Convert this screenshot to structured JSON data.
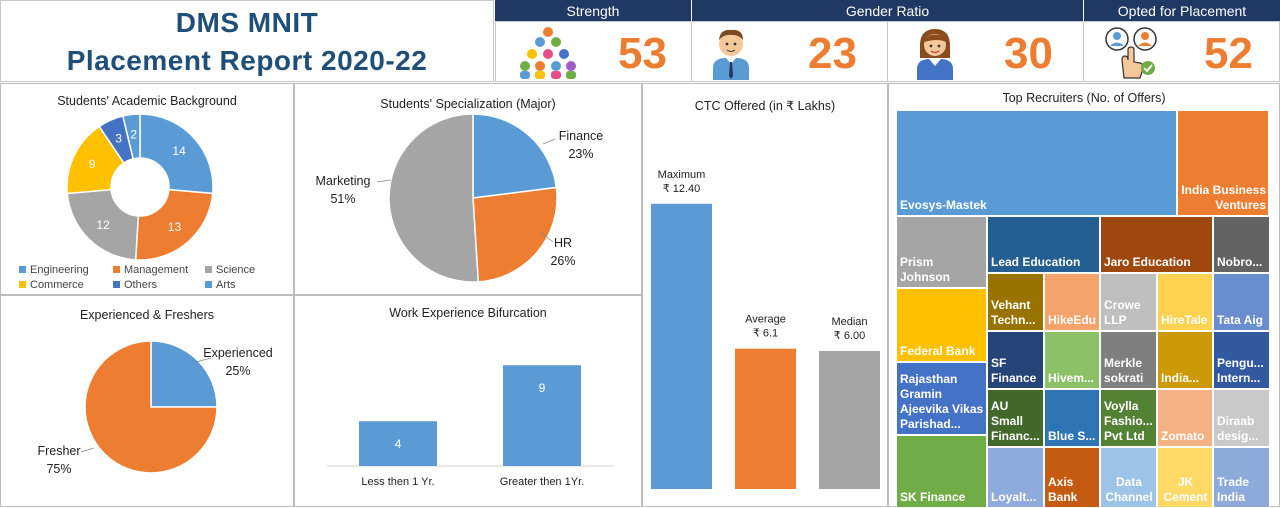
{
  "header": {
    "title_line1": "DMS MNIT",
    "title_line2": "Placement Report 2020-22"
  },
  "kpis": {
    "strength_label": "Strength",
    "strength_value": "53",
    "gender_label": "Gender Ratio",
    "male_value": "23",
    "female_value": "30",
    "placement_label": "Opted for Placement",
    "placement_value": "52",
    "icons": [
      "group-people-icon",
      "male-person-icon",
      "female-person-icon",
      "recruit-select-icon"
    ]
  },
  "colors": {
    "navy": "#1f3864",
    "title_blue": "#1f4e79",
    "orange": "#ed7d31",
    "blue": "#5b9bd5",
    "gray": "#a5a5a5",
    "gold": "#ffc000",
    "dark_blue": "#4472c4",
    "green": "#70ad47"
  },
  "chart_data": [
    {
      "id": "academic",
      "type": "pie",
      "title": "Students' Academic Background",
      "donut": true,
      "slices": [
        {
          "label": "Engineering",
          "value": 14,
          "color": "#5b9bd5"
        },
        {
          "label": "Management",
          "value": 13,
          "color": "#ed7d31"
        },
        {
          "label": "Science",
          "value": 12,
          "color": "#a5a5a5"
        },
        {
          "label": "Commerce",
          "value": 9,
          "color": "#ffc000"
        },
        {
          "label": "Others",
          "value": 3,
          "color": "#4472c4"
        },
        {
          "label": "Arts",
          "value": 2,
          "color": "#5b9bd5"
        }
      ],
      "legend": "bottom"
    },
    {
      "id": "specialization",
      "type": "pie",
      "title": "Students' Specialization (Major)",
      "slices": [
        {
          "label": "Finance",
          "value": 23,
          "pct_label": "23%",
          "color": "#5b9bd5"
        },
        {
          "label": "HR",
          "value": 26,
          "pct_label": "26%",
          "color": "#ed7d31"
        },
        {
          "label": "Marketing",
          "value": 51,
          "pct_label": "51%",
          "color": "#a5a5a5"
        }
      ]
    },
    {
      "id": "ctc",
      "type": "bar",
      "title": "CTC Offered (in ₹ Lakhs)",
      "categories": [
        "Maximum",
        "Average",
        "Median"
      ],
      "values": [
        12.4,
        6.1,
        6.0
      ],
      "value_labels": [
        "₹ 12.40",
        "₹ 6.1",
        "₹ 6.00"
      ],
      "colors": [
        "#5b9bd5",
        "#ed7d31",
        "#a5a5a5"
      ],
      "ylim": [
        0,
        15
      ]
    },
    {
      "id": "experience",
      "type": "pie",
      "title": "Experienced  & Freshers",
      "slices": [
        {
          "label": "Experienced",
          "value": 25,
          "pct_label": "25%",
          "color": "#5b9bd5"
        },
        {
          "label": "Fresher",
          "value": 75,
          "pct_label": "75%",
          "color": "#ed7d31"
        }
      ]
    },
    {
      "id": "work_exp",
      "type": "bar",
      "title": "Work Experience Bifurcation",
      "categories": [
        "Less then 1 Yr.",
        "Greater then 1Yr."
      ],
      "values": [
        4,
        9
      ],
      "value_labels": [
        "4",
        "9"
      ],
      "ylim": [
        0,
        12
      ]
    },
    {
      "id": "recruiters",
      "type": "treemap",
      "title": "Top Recruiters (No. of Offers)",
      "items": [
        "Evosys-Mastek",
        "India Business Ventures",
        "Prism Johnson",
        "Lead Education",
        "Jaro Education",
        "Nobro...",
        "Federal Bank",
        "Vehant Techn...",
        "HikeEdu",
        "Crowe LLP",
        "HireTale",
        "Tata Aig",
        "SF Finance",
        "Hivem...",
        "Merkle sokrati",
        "India...",
        "Pengu... Intern...",
        "Rajasthan Gramin Ajeevika Vikas Parishad...",
        "AU Small Financ...",
        "Blue S...",
        "Voylla Fashio... Pvt Ltd",
        "Zomato",
        "Diraab desig...",
        "SK Finance",
        "Loyalt...",
        "Axis Bank",
        "Data Channel",
        "JK Cement",
        "Trade India"
      ]
    }
  ]
}
